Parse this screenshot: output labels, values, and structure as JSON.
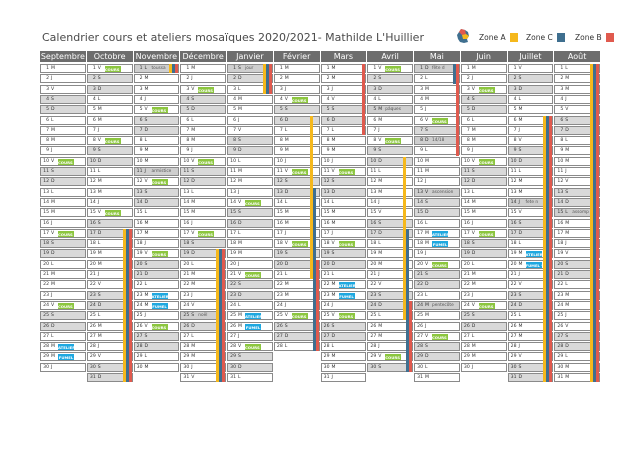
{
  "title": "Calendrier cours et ateliers mosaïques 2020/2021- Mathilde L'Huillier",
  "legend": [
    {
      "label": "Zone A",
      "color": "#f5b81c"
    },
    {
      "label": "Zone C",
      "color": "#3f6f8f"
    },
    {
      "label": "Zone B",
      "color": "#e05a4e"
    }
  ],
  "colors": {
    "cours": "#8cc63f",
    "atelier": "#1fa8e0",
    "header": "#6d6d6d"
  },
  "months": [
    {
      "name": "Septembre",
      "days": 30,
      "start": 2
    },
    {
      "name": "Octobre",
      "days": 31,
      "start": 4
    },
    {
      "name": "Novembre",
      "days": 30,
      "start": 0
    },
    {
      "name": "Décembre",
      "days": 31,
      "start": 2
    },
    {
      "name": "Janvier",
      "days": 31,
      "start": 5
    },
    {
      "name": "Février",
      "days": 28,
      "start": 1
    },
    {
      "name": "Mars",
      "days": 31,
      "start": 1
    },
    {
      "name": "Avril",
      "days": 30,
      "start": 4
    },
    {
      "name": "Mai",
      "days": 31,
      "start": 6
    },
    {
      "name": "Juin",
      "days": 30,
      "start": 2
    },
    {
      "name": "Juillet",
      "days": 31,
      "start": 4
    },
    {
      "name": "Août",
      "days": 31,
      "start": 0
    }
  ],
  "holidays": [
    {
      "m": 2,
      "d": 1,
      "text": "toussa"
    },
    {
      "m": 2,
      "d": 11,
      "text": "armistice"
    },
    {
      "m": 3,
      "d": 25,
      "text": "noël"
    },
    {
      "m": 4,
      "d": 1,
      "text": "jour"
    },
    {
      "m": 7,
      "d": 5,
      "text": "pâques"
    },
    {
      "m": 8,
      "d": 1,
      "text": "fête d"
    },
    {
      "m": 8,
      "d": 8,
      "text": "14/18"
    },
    {
      "m": 8,
      "d": 13,
      "text": "ascension"
    },
    {
      "m": 8,
      "d": 24,
      "text": "pentecôte"
    },
    {
      "m": 10,
      "d": 14,
      "text": "fete n"
    },
    {
      "m": 11,
      "d": 15,
      "text": "assomp"
    }
  ],
  "events": [
    {
      "m": 0,
      "d": 10,
      "text": "COURS 40",
      "kind": "cours"
    },
    {
      "m": 0,
      "d": 17,
      "text": "COURS 40",
      "kind": "cours"
    },
    {
      "m": 0,
      "d": 24,
      "text": "COURS 40",
      "kind": "cours"
    },
    {
      "m": 0,
      "d": 28,
      "text": "ATELIER",
      "kind": "atelier"
    },
    {
      "m": 0,
      "d": 29,
      "text": "FUMEL",
      "kind": "atelier"
    },
    {
      "m": 1,
      "d": 1,
      "text": "COURS 40",
      "kind": "cours"
    },
    {
      "m": 1,
      "d": 8,
      "text": "COURS 40",
      "kind": "cours"
    },
    {
      "m": 1,
      "d": 15,
      "text": "COURS 40",
      "kind": "cours"
    },
    {
      "m": 2,
      "d": 5,
      "text": "COURS 40",
      "kind": "cours"
    },
    {
      "m": 2,
      "d": 12,
      "text": "COURS 40",
      "kind": "cours"
    },
    {
      "m": 2,
      "d": 19,
      "text": "COURS 40",
      "kind": "cours"
    },
    {
      "m": 2,
      "d": 23,
      "text": "ATELIER",
      "kind": "atelier"
    },
    {
      "m": 2,
      "d": 24,
      "text": "FUMEL",
      "kind": "atelier"
    },
    {
      "m": 2,
      "d": 26,
      "text": "COURS 40",
      "kind": "cours"
    },
    {
      "m": 3,
      "d": 3,
      "text": "COURS 40",
      "kind": "cours"
    },
    {
      "m": 3,
      "d": 10,
      "text": "COURS 40",
      "kind": "cours"
    },
    {
      "m": 3,
      "d": 17,
      "text": "COURS 40",
      "kind": "cours"
    },
    {
      "m": 4,
      "d": 14,
      "text": "COURS 40",
      "kind": "cours"
    },
    {
      "m": 4,
      "d": 21,
      "text": "COURS 40",
      "kind": "cours"
    },
    {
      "m": 4,
      "d": 25,
      "text": "ATELIER",
      "kind": "atelier"
    },
    {
      "m": 4,
      "d": 26,
      "text": "FUMEL",
      "kind": "atelier"
    },
    {
      "m": 4,
      "d": 28,
      "text": "COURS 40",
      "kind": "cours"
    },
    {
      "m": 5,
      "d": 4,
      "text": "COURS 40",
      "kind": "cours"
    },
    {
      "m": 5,
      "d": 11,
      "text": "COURS 40",
      "kind": "cours"
    },
    {
      "m": 5,
      "d": 18,
      "text": "COURS 40",
      "kind": "cours"
    },
    {
      "m": 5,
      "d": 25,
      "text": "COURS 40",
      "kind": "cours"
    },
    {
      "m": 6,
      "d": 11,
      "text": "COURS 40",
      "kind": "cours"
    },
    {
      "m": 6,
      "d": 18,
      "text": "COURS 40",
      "kind": "cours"
    },
    {
      "m": 6,
      "d": 22,
      "text": "ATELIER",
      "kind": "atelier"
    },
    {
      "m": 6,
      "d": 23,
      "text": "FUMEL",
      "kind": "atelier"
    },
    {
      "m": 6,
      "d": 25,
      "text": "COURS 40",
      "kind": "cours"
    },
    {
      "m": 7,
      "d": 1,
      "text": "COURS 40",
      "kind": "cours"
    },
    {
      "m": 7,
      "d": 8,
      "text": "COURS 40",
      "kind": "cours"
    },
    {
      "m": 7,
      "d": 29,
      "text": "COURS 40",
      "kind": "cours"
    },
    {
      "m": 8,
      "d": 6,
      "text": "COURS 40",
      "kind": "cours"
    },
    {
      "m": 8,
      "d": 17,
      "text": "ATELIER",
      "kind": "atelier"
    },
    {
      "m": 8,
      "d": 18,
      "text": "FUMEL",
      "kind": "atelier"
    },
    {
      "m": 8,
      "d": 20,
      "text": "COURS 40",
      "kind": "cours"
    },
    {
      "m": 8,
      "d": 27,
      "text": "COURS 40",
      "kind": "cours"
    },
    {
      "m": 9,
      "d": 3,
      "text": "COURS 40",
      "kind": "cours"
    },
    {
      "m": 9,
      "d": 10,
      "text": "COURS 40",
      "kind": "cours"
    },
    {
      "m": 9,
      "d": 17,
      "text": "COURS 40",
      "kind": "cours"
    },
    {
      "m": 9,
      "d": 24,
      "text": "COURS 40",
      "kind": "cours"
    },
    {
      "m": 10,
      "d": 19,
      "text": "ATELIER",
      "kind": "atelier"
    },
    {
      "m": 10,
      "d": 20,
      "text": "FUMEL *",
      "kind": "atelier"
    }
  ],
  "zone_vacations": [
    {
      "zone": "A",
      "ranges": [
        [
          1,
          17,
          31
        ],
        [
          2,
          1,
          1
        ],
        [
          3,
          19,
          31
        ],
        [
          4,
          1,
          3
        ],
        [
          5,
          6,
          21
        ],
        [
          7,
          10,
          25
        ],
        [
          10,
          6,
          31
        ],
        [
          11,
          1,
          31
        ]
      ]
    },
    {
      "zone": "C",
      "ranges": [
        [
          1,
          17,
          31
        ],
        [
          2,
          1,
          1
        ],
        [
          3,
          19,
          31
        ],
        [
          4,
          1,
          3
        ],
        [
          5,
          13,
          28
        ],
        [
          7,
          17,
          30
        ],
        [
          8,
          1,
          2
        ],
        [
          10,
          6,
          31
        ],
        [
          11,
          1,
          31
        ]
      ]
    },
    {
      "zone": "B",
      "ranges": [
        [
          1,
          17,
          31
        ],
        [
          2,
          1,
          1
        ],
        [
          3,
          19,
          31
        ],
        [
          4,
          1,
          3
        ],
        [
          5,
          20,
          28
        ],
        [
          6,
          1,
          7
        ],
        [
          7,
          24,
          30
        ],
        [
          8,
          1,
          9
        ],
        [
          10,
          6,
          31
        ],
        [
          11,
          1,
          31
        ]
      ]
    }
  ]
}
